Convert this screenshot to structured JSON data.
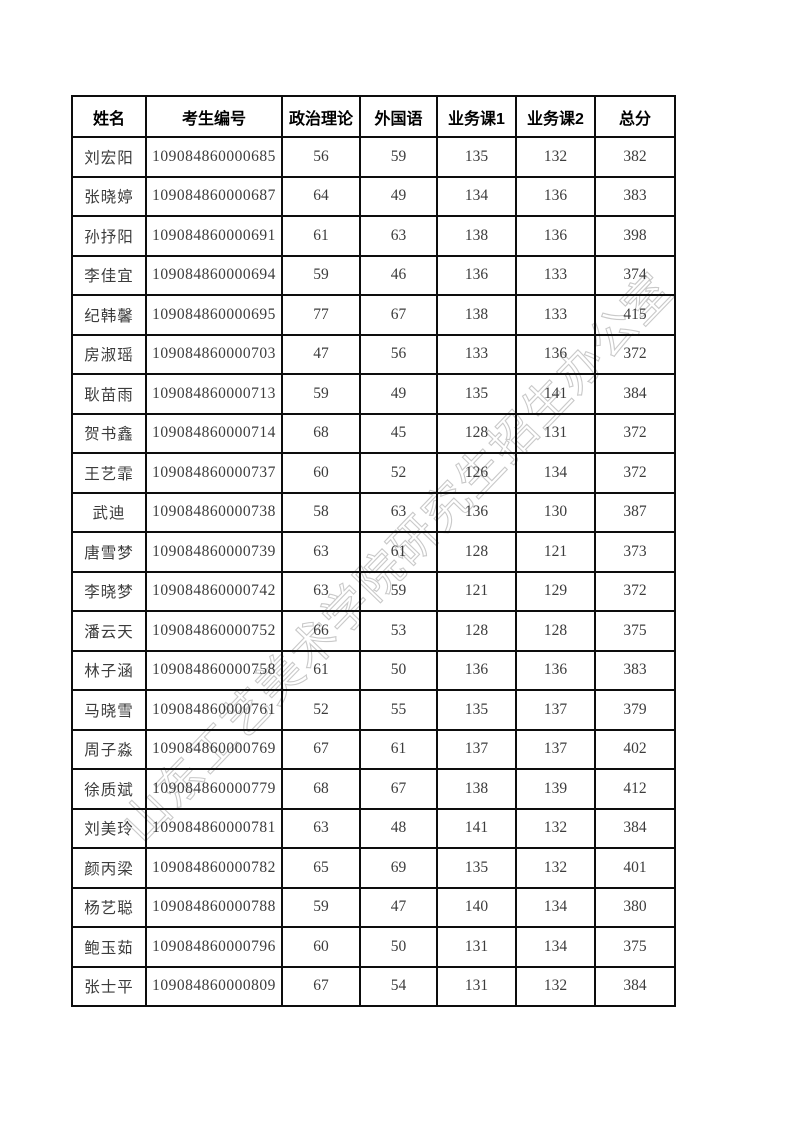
{
  "watermark": {
    "text": "山东工艺美术学院研究生招生办公室",
    "color": "#c9c9c9"
  },
  "table": {
    "headers": [
      "姓名",
      "考生编号",
      "政治理论",
      "外国语",
      "业务课1",
      "业务课2",
      "总分"
    ],
    "rows": [
      [
        "刘宏阳",
        "109084860000685",
        "56",
        "59",
        "135",
        "132",
        "382"
      ],
      [
        "张晓婷",
        "109084860000687",
        "64",
        "49",
        "134",
        "136",
        "383"
      ],
      [
        "孙抒阳",
        "109084860000691",
        "61",
        "63",
        "138",
        "136",
        "398"
      ],
      [
        "李佳宜",
        "109084860000694",
        "59",
        "46",
        "136",
        "133",
        "374"
      ],
      [
        "纪韩馨",
        "109084860000695",
        "77",
        "67",
        "138",
        "133",
        "415"
      ],
      [
        "房淑瑶",
        "109084860000703",
        "47",
        "56",
        "133",
        "136",
        "372"
      ],
      [
        "耿苗雨",
        "109084860000713",
        "59",
        "49",
        "135",
        "141",
        "384"
      ],
      [
        "贺书鑫",
        "109084860000714",
        "68",
        "45",
        "128",
        "131",
        "372"
      ],
      [
        "王艺霏",
        "109084860000737",
        "60",
        "52",
        "126",
        "134",
        "372"
      ],
      [
        "武迪",
        "109084860000738",
        "58",
        "63",
        "136",
        "130",
        "387"
      ],
      [
        "唐雪梦",
        "109084860000739",
        "63",
        "61",
        "128",
        "121",
        "373"
      ],
      [
        "李晓梦",
        "109084860000742",
        "63",
        "59",
        "121",
        "129",
        "372"
      ],
      [
        "潘云天",
        "109084860000752",
        "66",
        "53",
        "128",
        "128",
        "375"
      ],
      [
        "林子涵",
        "109084860000758",
        "61",
        "50",
        "136",
        "136",
        "383"
      ],
      [
        "马晓雪",
        "109084860000761",
        "52",
        "55",
        "135",
        "137",
        "379"
      ],
      [
        "周子淼",
        "109084860000769",
        "67",
        "61",
        "137",
        "137",
        "402"
      ],
      [
        "徐质斌",
        "109084860000779",
        "68",
        "67",
        "138",
        "139",
        "412"
      ],
      [
        "刘美玲",
        "109084860000781",
        "63",
        "48",
        "141",
        "132",
        "384"
      ],
      [
        "颜丙梁",
        "109084860000782",
        "65",
        "69",
        "135",
        "132",
        "401"
      ],
      [
        "杨艺聪",
        "109084860000788",
        "59",
        "47",
        "140",
        "134",
        "380"
      ],
      [
        "鲍玉茹",
        "109084860000796",
        "60",
        "50",
        "131",
        "134",
        "375"
      ],
      [
        "张士平",
        "109084860000809",
        "67",
        "54",
        "131",
        "132",
        "384"
      ]
    ]
  }
}
